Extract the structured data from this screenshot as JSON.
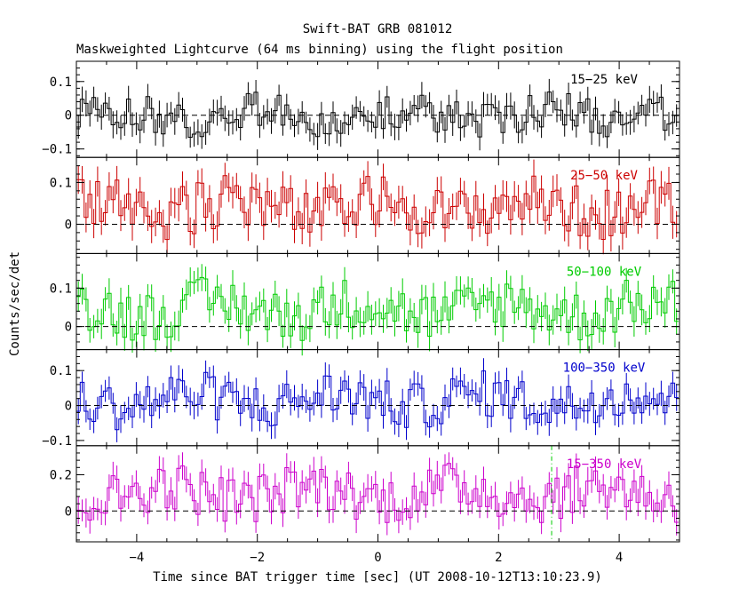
{
  "chart_data": {
    "type": "line",
    "title": "Swift-BAT GRB 081012",
    "subtitle": "Maskweighted Lightcurve (64 ms binning) using the flight position",
    "xlabel": "Time since BAT trigger time [sec] (UT 2008-10-12T13:10:23.9)",
    "ylabel": "Counts/sec/det",
    "xlim": [
      -5,
      5
    ],
    "x_ticks": [
      -4,
      -2,
      0,
      2,
      4
    ],
    "x_tick_labels": [
      "−4",
      "−2",
      "0",
      "2",
      "4"
    ],
    "bin_width_s": 0.064,
    "reference_line_y": 0,
    "marker_line_x": 2.88,
    "marker_line_color": "#00cc00",
    "panels": [
      {
        "name": "15−25 keV",
        "color": "#000000",
        "ylim": [
          -0.125,
          0.16
        ],
        "y_ticks": [
          -0.1,
          0,
          0.1
        ],
        "y_tick_labels": [
          "−0.1",
          "0",
          "0.1"
        ],
        "rate_range": [
          -0.06,
          0.06
        ],
        "err": 0.035
      },
      {
        "name": "25−50 keV",
        "color": "#cc0000",
        "ylim": [
          -0.07,
          0.16
        ],
        "y_ticks": [
          0,
          0.1
        ],
        "y_tick_labels": [
          "0",
          "0.1"
        ],
        "rate_range": [
          -0.03,
          0.11
        ],
        "err": 0.035
      },
      {
        "name": "50−100 keV",
        "color": "#00cc00",
        "ylim": [
          -0.06,
          0.19
        ],
        "y_ticks": [
          0,
          0.1
        ],
        "y_tick_labels": [
          "0",
          "0.1"
        ],
        "rate_range": [
          -0.03,
          0.12
        ],
        "err": 0.035
      },
      {
        "name": "100−350 keV",
        "color": "#0000cc",
        "ylim": [
          -0.115,
          0.16
        ],
        "y_ticks": [
          -0.1,
          0,
          0.1
        ],
        "y_tick_labels": [
          "−0.1",
          "0",
          "0.1"
        ],
        "rate_range": [
          -0.06,
          0.09
        ],
        "err": 0.035
      },
      {
        "name": "15−350 keV",
        "color": "#cc00cc",
        "ylim": [
          -0.17,
          0.36
        ],
        "y_ticks": [
          0,
          0.2
        ],
        "y_tick_labels": [
          "0",
          "0.2"
        ],
        "rate_range": [
          -0.05,
          0.25
        ],
        "err": 0.07
      }
    ]
  }
}
